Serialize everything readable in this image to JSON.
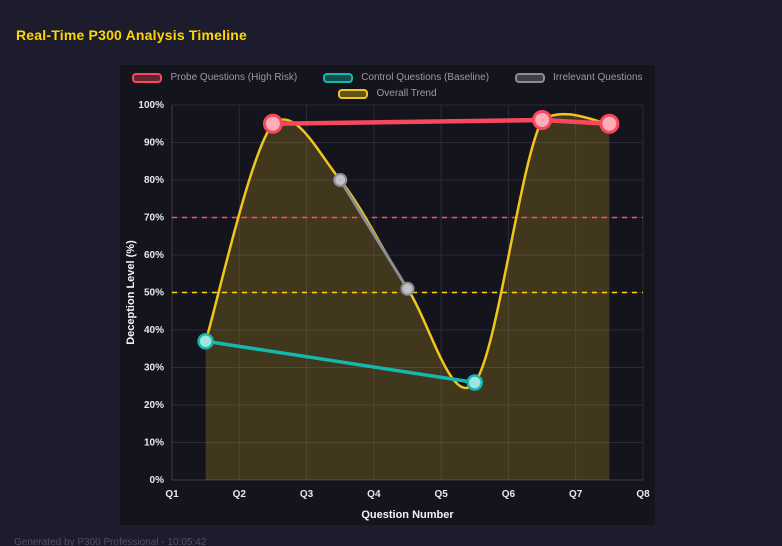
{
  "page": {
    "title": "Real-Time P300 Analysis Timeline",
    "footer": "Generated by P300 Professional - 10:05:42"
  },
  "colors": {
    "background": "#1c1c2d",
    "panel": "#14141d",
    "grid": "#2a2a3c",
    "axis_line": "#3c3c50",
    "tick_text": "#e8e8f0",
    "axis_title_text": "#f2f2f8",
    "legend_text": "#9a9aa8",
    "title_text": "#ffd700",
    "footer_text": "#50505f"
  },
  "chart_data": {
    "type": "line",
    "title": "Real-Time P300 Analysis Timeline",
    "xlabel": "Question Number",
    "ylabel": "Deception Level (%)",
    "x_ticks": [
      "Q1",
      "Q2",
      "Q3",
      "Q4",
      "Q5",
      "Q6",
      "Q7",
      "Q8"
    ],
    "x_range": [
      1,
      8
    ],
    "ylim": [
      0,
      100
    ],
    "y_tick_step": 10,
    "y_ticks": [
      "0%",
      "10%",
      "20%",
      "30%",
      "40%",
      "50%",
      "60%",
      "70%",
      "80%",
      "90%",
      "100%"
    ],
    "grid": true,
    "legend_position": "top",
    "legend": [
      {
        "name": "Probe Questions (High Risk)",
        "color": "#f8485e"
      },
      {
        "name": "Control Questions (Baseline)",
        "color": "#14b8ac"
      },
      {
        "name": "Irrelevant Questions",
        "color": "#8c8c96"
      },
      {
        "name": "Overall Trend",
        "color": "#f2c51d"
      }
    ],
    "series": [
      {
        "key": "probe",
        "name": "Probe Questions (High Risk)",
        "color": "#f8485e",
        "points": [
          {
            "x": 2.5,
            "y": 95
          },
          {
            "x": 6.5,
            "y": 96
          },
          {
            "x": 7.5,
            "y": 95
          }
        ]
      },
      {
        "key": "control",
        "name": "Control Questions (Baseline)",
        "color": "#14b8ac",
        "points": [
          {
            "x": 1.5,
            "y": 37
          },
          {
            "x": 5.5,
            "y": 26
          }
        ]
      },
      {
        "key": "irrelevant",
        "name": "Irrelevant Questions",
        "color": "#8c8c96",
        "points": [
          {
            "x": 3.5,
            "y": 80
          },
          {
            "x": 4.5,
            "y": 51
          }
        ]
      }
    ],
    "trend": {
      "key": "trend",
      "name": "Overall Trend",
      "color": "#f2c51d",
      "fill_opacity": 0.2,
      "points": [
        {
          "x": 1.5,
          "y": 37
        },
        {
          "x": 2.5,
          "y": 95
        },
        {
          "x": 3.5,
          "y": 80
        },
        {
          "x": 4.5,
          "y": 51
        },
        {
          "x": 5.5,
          "y": 26
        },
        {
          "x": 6.5,
          "y": 96
        },
        {
          "x": 7.5,
          "y": 95
        }
      ]
    },
    "thresholds": [
      {
        "value": 70,
        "color": "#ff4f6e",
        "style": "dashed"
      },
      {
        "value": 50,
        "color": "#ffd700",
        "style": "dashed"
      }
    ]
  }
}
